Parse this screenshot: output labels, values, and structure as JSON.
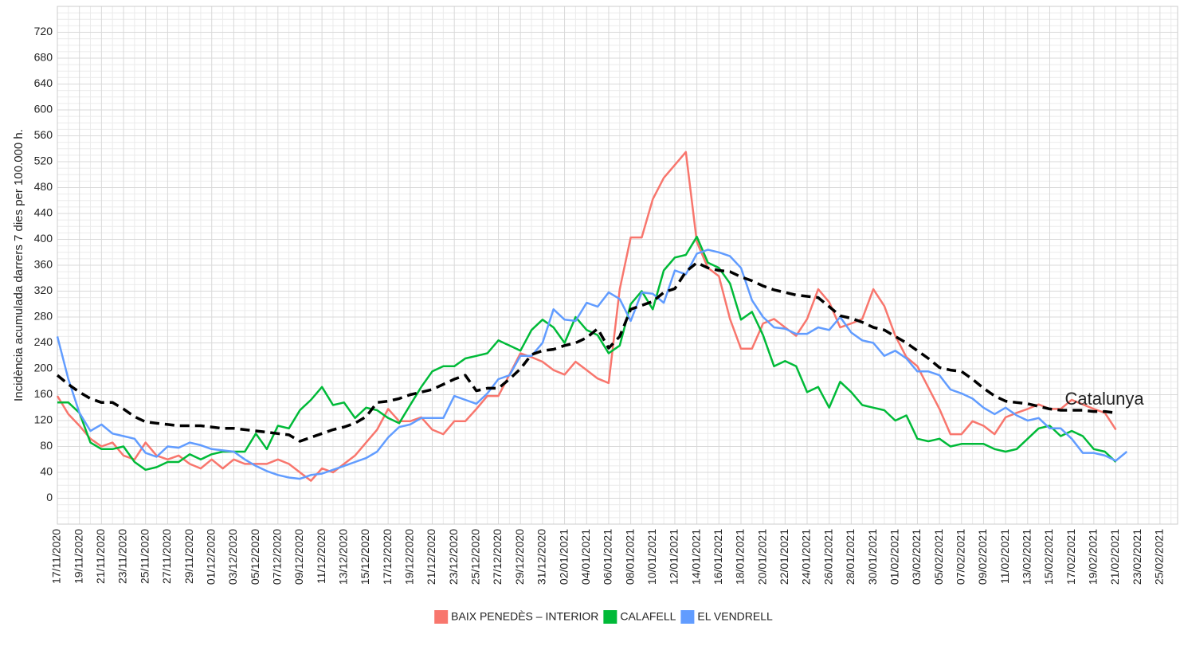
{
  "chart_data": {
    "type": "line",
    "y_label": "Incidència acumulada darrers 7 dies per 100.000 h.",
    "categories": [
      "17/11/2020",
      null,
      "19/11/2020",
      null,
      "21/11/2020",
      null,
      "23/11/2020",
      null,
      "25/11/2020",
      null,
      "27/11/2020",
      null,
      "29/11/2020",
      null,
      "01/12/2020",
      null,
      "03/12/2020",
      null,
      "05/12/2020",
      null,
      "07/12/2020",
      null,
      "09/12/2020",
      null,
      "11/12/2020",
      null,
      "13/12/2020",
      null,
      "15/12/2020",
      null,
      "17/12/2020",
      null,
      "19/12/2020",
      null,
      "21/12/2020",
      null,
      "23/12/2020",
      null,
      "25/12/2020",
      null,
      "27/12/2020",
      null,
      "29/12/2020",
      null,
      "31/12/2020",
      null,
      "02/01/2021",
      null,
      "04/01/2021",
      null,
      "06/01/2021",
      null,
      "08/01/2021",
      null,
      "10/01/2021",
      null,
      "12/01/2021",
      null,
      "14/01/2021",
      null,
      "16/01/2021",
      null,
      "18/01/2021",
      null,
      "20/01/2021",
      null,
      "22/01/2021",
      null,
      "24/01/2021",
      null,
      "26/01/2021",
      null,
      "28/01/2021",
      null,
      "30/01/2021",
      null,
      "01/02/2021",
      null,
      "03/02/2021",
      null,
      "05/02/2021",
      null,
      "07/02/2021",
      null,
      "09/02/2021",
      null,
      "11/02/2021",
      null,
      "13/02/2021",
      null,
      "15/02/2021",
      null,
      "17/02/2021",
      null,
      "19/02/2021",
      null,
      "21/02/2021",
      null,
      "23/02/2021",
      null,
      "25/02/2021",
      null
    ],
    "series": [
      {
        "name": "BAIX PENEDÈS – INTERIOR",
        "color": "#f8766d",
        "values": [
          158,
          130,
          112,
          92,
          80,
          86,
          66,
          60,
          86,
          66,
          60,
          66,
          53,
          46,
          60,
          46,
          60,
          53,
          53,
          53,
          60,
          53,
          40,
          27,
          46,
          40,
          53,
          66,
          86,
          106,
          138,
          119,
          119,
          125,
          106,
          99,
          119,
          119,
          138,
          158,
          158,
          191,
          224,
          218,
          211,
          198,
          191,
          211,
          198,
          185,
          178,
          323,
          403,
          403,
          462,
          495,
          515,
          535,
          396,
          356,
          343,
          277,
          231,
          231,
          270,
          277,
          264,
          251,
          277,
          323,
          303,
          264,
          270,
          277,
          323,
          297,
          251,
          218,
          204,
          171,
          138,
          99,
          99,
          119,
          112,
          99,
          125,
          132,
          138,
          145,
          138,
          138,
          152,
          145,
          138,
          132,
          106,
          null,
          null,
          null,
          null,
          null
        ]
      },
      {
        "name": "CALAFELL",
        "color": "#00ba38",
        "values": [
          148,
          148,
          132,
          86,
          76,
          76,
          80,
          56,
          44,
          48,
          56,
          56,
          68,
          60,
          68,
          72,
          72,
          72,
          100,
          76,
          112,
          108,
          136,
          152,
          172,
          144,
          148,
          124,
          140,
          136,
          124,
          116,
          144,
          172,
          196,
          204,
          204,
          216,
          220,
          224,
          244,
          236,
          228,
          260,
          276,
          264,
          240,
          280,
          260,
          252,
          224,
          236,
          300,
          320,
          292,
          352,
          372,
          376,
          404,
          364,
          356,
          332,
          276,
          288,
          252,
          204,
          212,
          204,
          164,
          172,
          140,
          180,
          164,
          144,
          140,
          136,
          120,
          128,
          92,
          88,
          92,
          80,
          84,
          84,
          84,
          76,
          72,
          76,
          92,
          108,
          112,
          96,
          104,
          96,
          76,
          72,
          56,
          null,
          null,
          null,
          null,
          null
        ]
      },
      {
        "name": "EL VENDRELL",
        "color": "#619cff",
        "values": [
          250,
          184,
          132,
          104,
          114,
          100,
          96,
          92,
          70,
          64,
          80,
          78,
          86,
          82,
          76,
          74,
          72,
          60,
          50,
          42,
          36,
          32,
          30,
          36,
          38,
          44,
          50,
          56,
          62,
          72,
          94,
          110,
          114,
          124,
          124,
          124,
          158,
          152,
          146,
          162,
          184,
          190,
          220,
          220,
          240,
          292,
          276,
          274,
          302,
          296,
          318,
          308,
          274,
          318,
          316,
          302,
          352,
          346,
          378,
          384,
          380,
          374,
          356,
          306,
          280,
          264,
          262,
          254,
          254,
          264,
          260,
          280,
          256,
          244,
          240,
          220,
          228,
          216,
          196,
          196,
          190,
          168,
          162,
          154,
          140,
          130,
          140,
          128,
          120,
          124,
          108,
          108,
          92,
          70,
          70,
          66,
          58,
          72,
          null,
          null,
          null,
          null
        ]
      },
      {
        "name": "Catalunya",
        "color": "#000000",
        "dashed": true,
        "in_legend": false,
        "label_at_end": true,
        "values": [
          190,
          176,
          164,
          154,
          148,
          148,
          138,
          126,
          118,
          116,
          114,
          112,
          112,
          112,
          110,
          108,
          108,
          106,
          104,
          102,
          100,
          98,
          88,
          94,
          100,
          106,
          110,
          116,
          126,
          148,
          150,
          154,
          160,
          164,
          168,
          176,
          184,
          190,
          166,
          170,
          170,
          184,
          200,
          222,
          228,
          230,
          236,
          240,
          248,
          262,
          232,
          250,
          292,
          298,
          304,
          318,
          324,
          350,
          364,
          356,
          352,
          350,
          342,
          336,
          328,
          322,
          318,
          314,
          312,
          310,
          296,
          282,
          278,
          272,
          264,
          260,
          250,
          240,
          228,
          216,
          202,
          198,
          196,
          184,
          170,
          158,
          150,
          148,
          146,
          142,
          138,
          136,
          136,
          136,
          134,
          134,
          132,
          null,
          null,
          null,
          null,
          null
        ]
      }
    ],
    "ylim": [
      -40,
      760
    ],
    "yticks": [
      0,
      40,
      80,
      120,
      160,
      200,
      240,
      280,
      320,
      360,
      400,
      440,
      480,
      520,
      560,
      600,
      640,
      680,
      720
    ],
    "grid": true,
    "legend": "bottom"
  }
}
